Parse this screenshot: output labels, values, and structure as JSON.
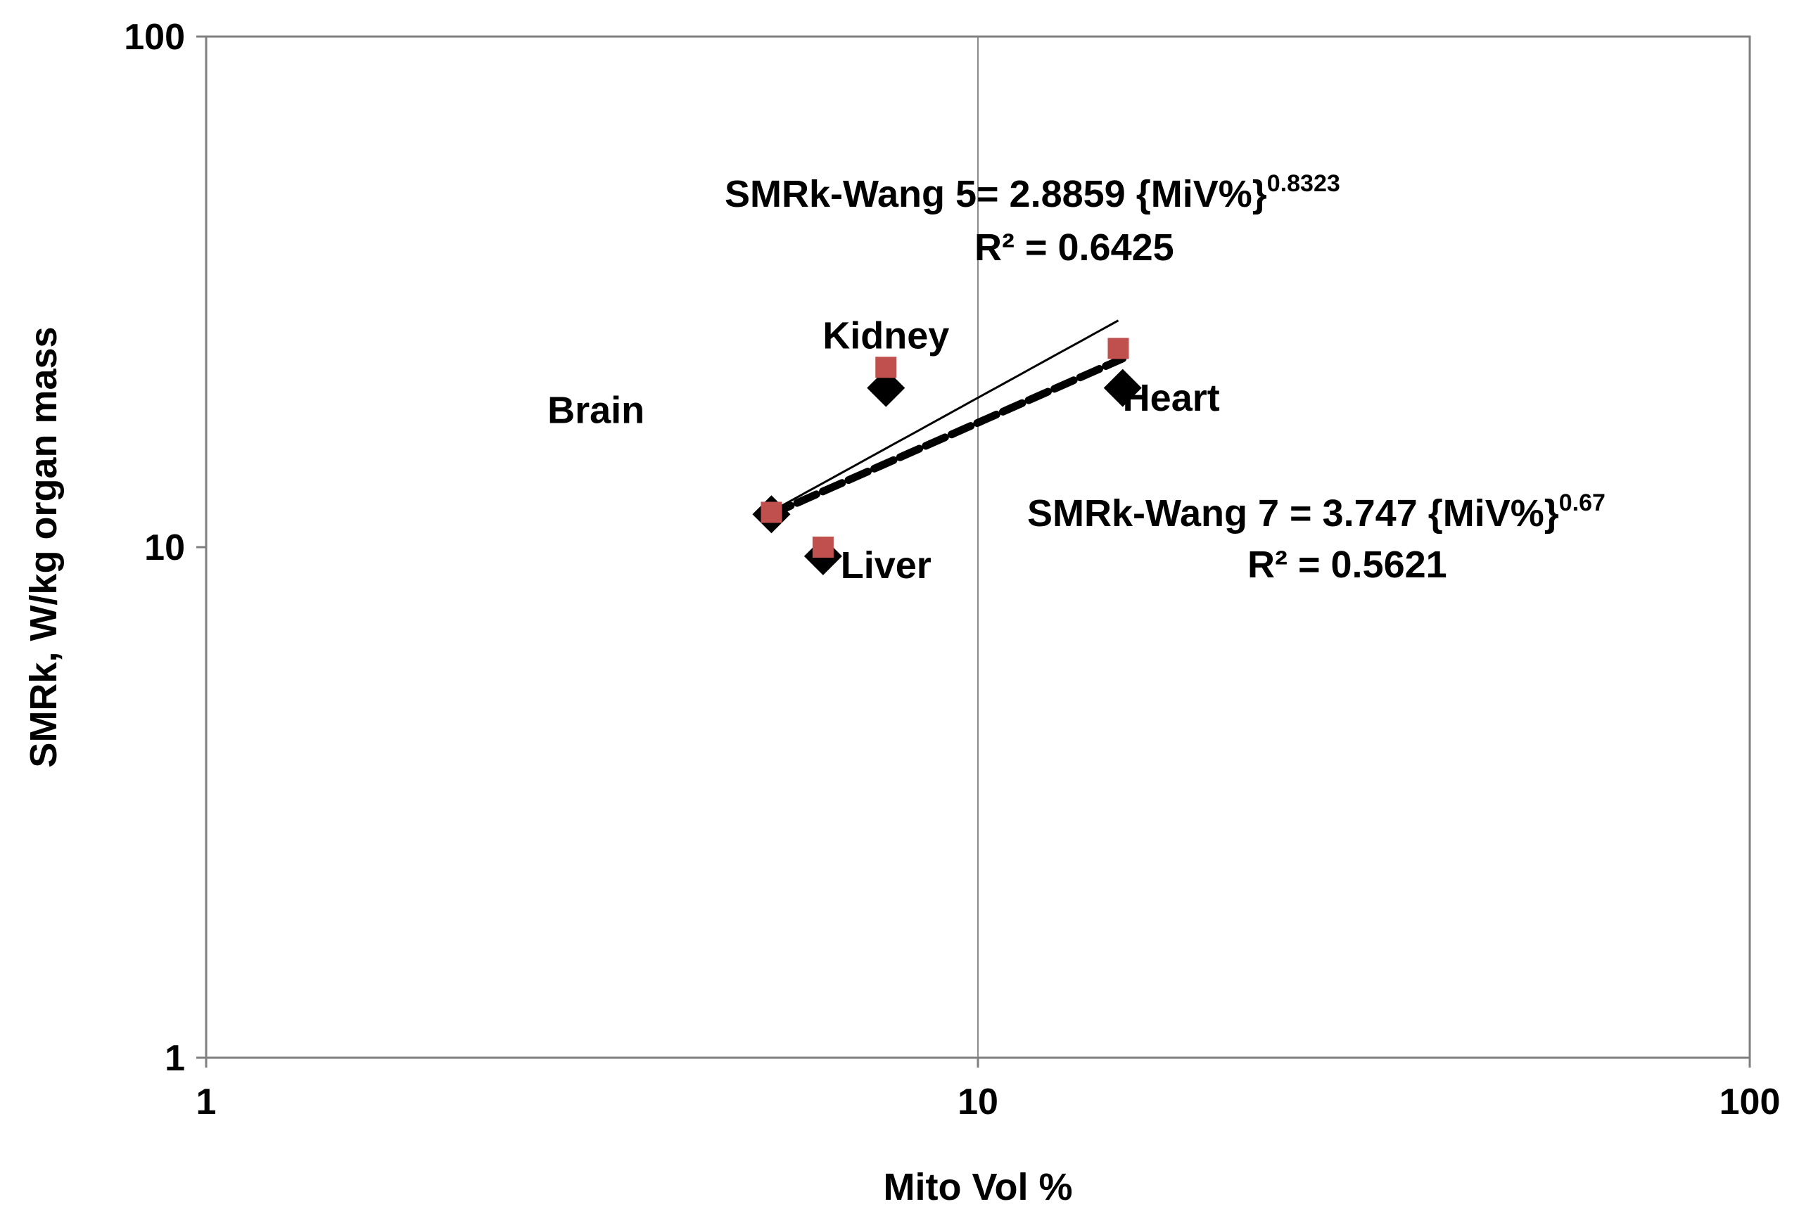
{
  "chart_data": {
    "type": "scatter",
    "xscale": "log",
    "yscale": "log",
    "xlim": [
      1,
      100
    ],
    "ylim": [
      1,
      100
    ],
    "xlabel": "Mito Vol %",
    "ylabel": "SMRk, W/kg organ mass",
    "x_ticks": [
      "1",
      "10",
      "100"
    ],
    "y_ticks": [
      "1",
      "10",
      "100"
    ],
    "grid": "vertical line at x=10",
    "series": [
      {
        "marker": "diamond",
        "color": "#000000",
        "points": [
          {
            "x": 5.4,
            "y": 11.6
          },
          {
            "x": 6.3,
            "y": 9.6
          },
          {
            "x": 7.6,
            "y": 20.5
          },
          {
            "x": 15.4,
            "y": 20.5
          }
        ]
      },
      {
        "marker": "square",
        "color": "#C0504D",
        "points": [
          {
            "x": 5.4,
            "y": 11.7
          },
          {
            "x": 6.3,
            "y": 10.0
          },
          {
            "x": 7.6,
            "y": 22.5
          },
          {
            "x": 15.2,
            "y": 24.5
          }
        ]
      }
    ],
    "trendlines": [
      {
        "style": "solid-thin",
        "coef": 2.8859,
        "exp": 0.8323,
        "x_range": [
          5.4,
          15.2
        ],
        "color": "#000000"
      },
      {
        "style": "dashed-thick",
        "coef": 3.747,
        "exp": 0.67,
        "x_range": [
          5.4,
          15.4
        ],
        "color": "#000000"
      }
    ],
    "point_labels": [
      {
        "text": "Kidney",
        "x": 7.6,
        "y": 24.5
      },
      {
        "text": "Brain",
        "x": 3.2,
        "y": 17.5
      },
      {
        "text": "Heart",
        "x": 17.8,
        "y": 18.5
      },
      {
        "text": "Liver",
        "x": 7.6,
        "y": 8.7
      }
    ],
    "equations": [
      {
        "line1_main": "SMRk-Wang 5= 2.8859  {MiV%}",
        "line1_sup": "0.8323",
        "line2": "R² = 0.6425"
      },
      {
        "line1_main": "SMRk-Wang 7 = 3.747 {MiV%}",
        "line1_sup": "0.67",
        "line2": "R² = 0.5621"
      }
    ]
  }
}
